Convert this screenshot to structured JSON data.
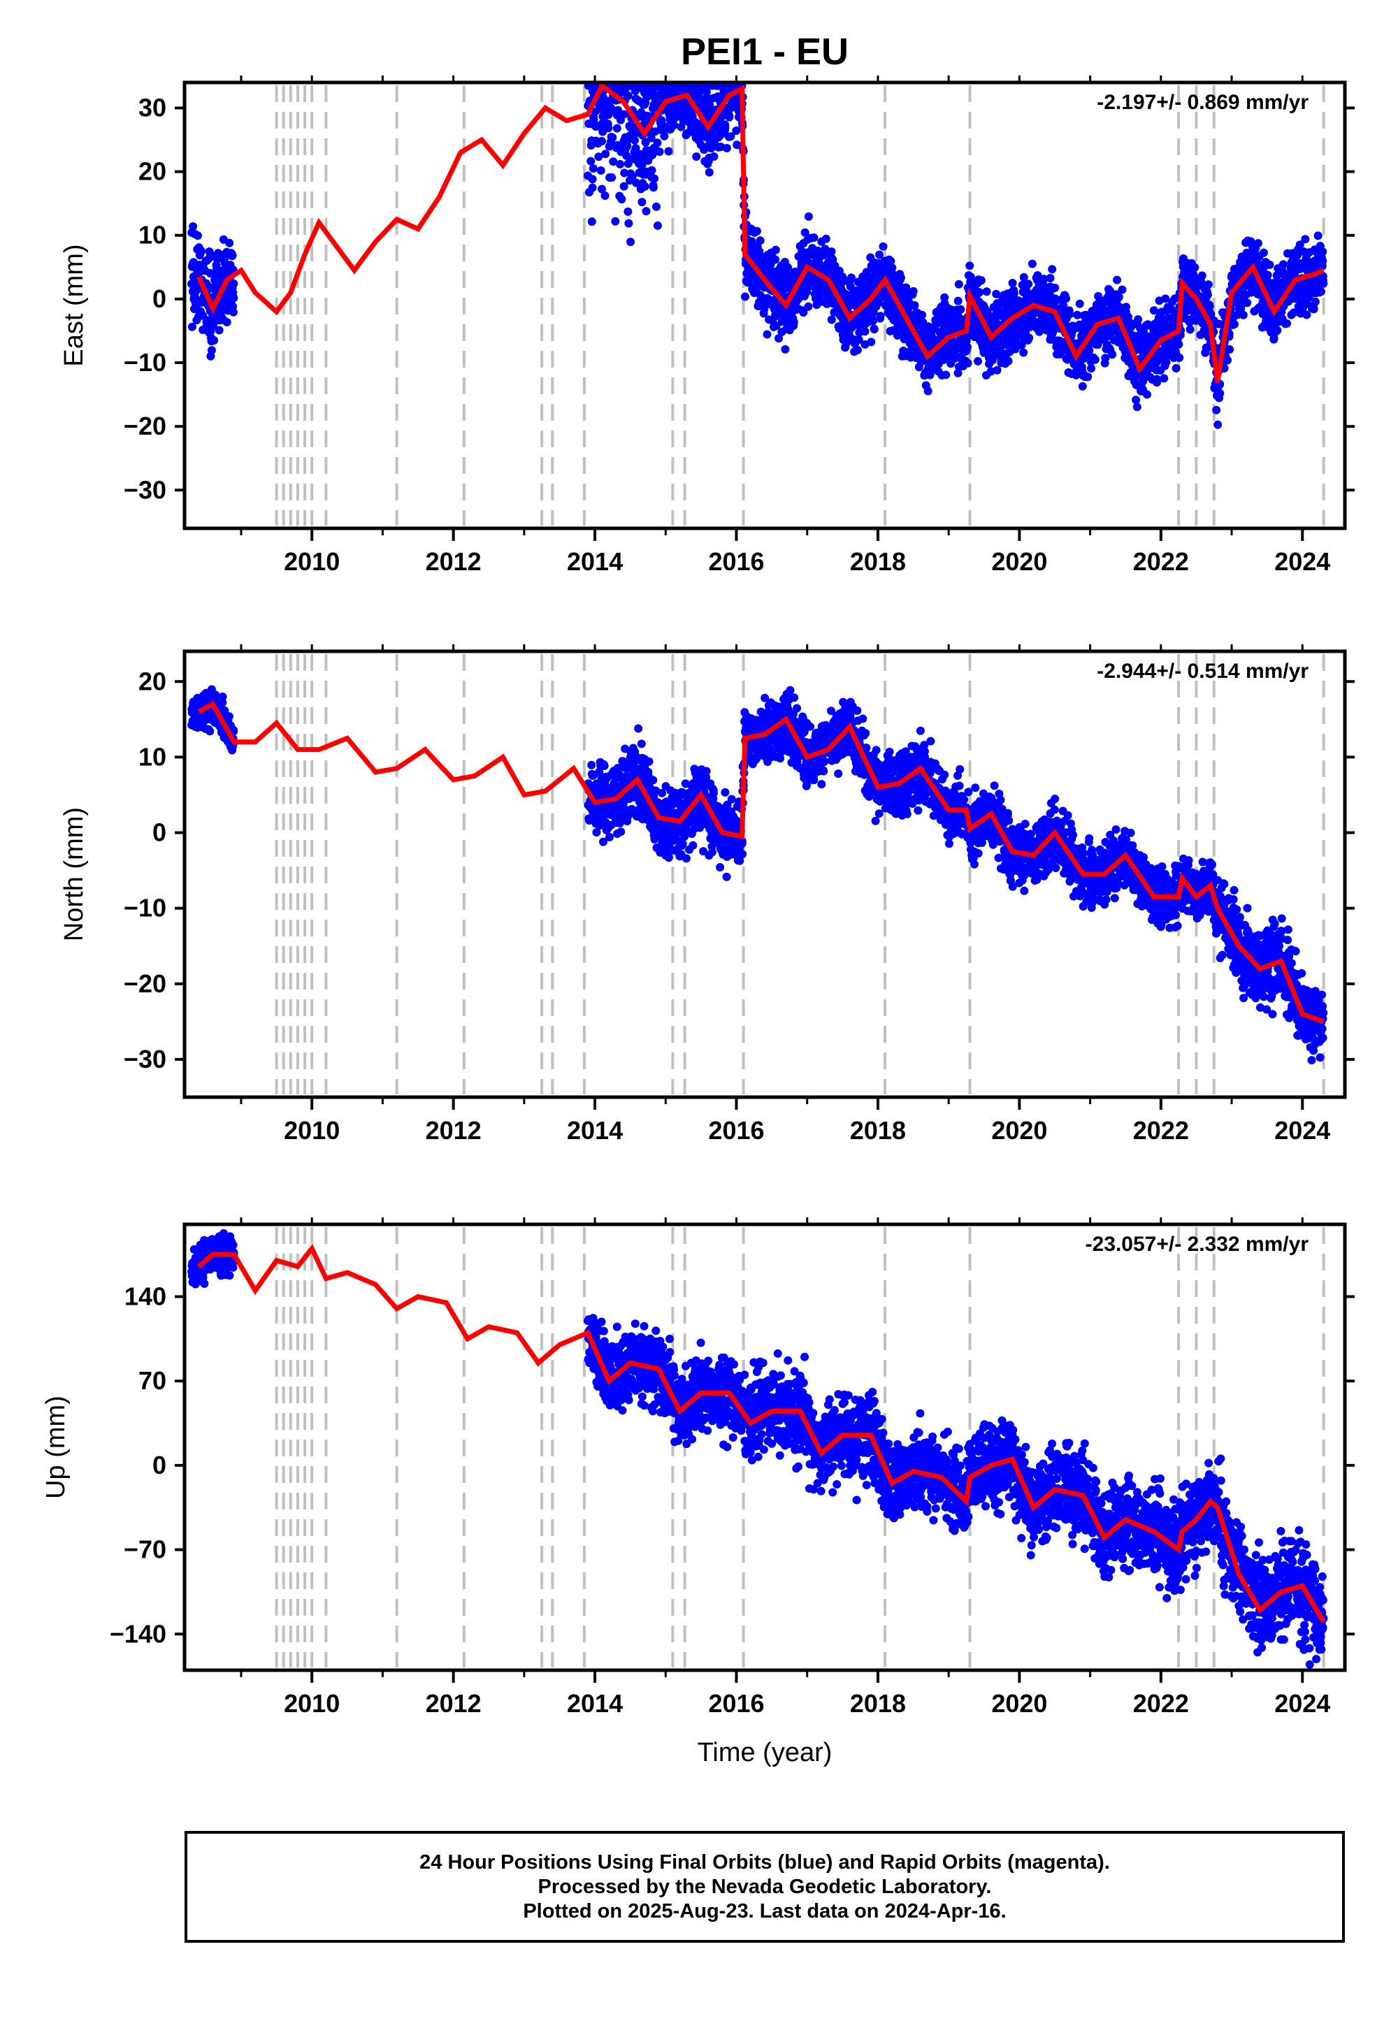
{
  "title": "PEI1 - EU",
  "xlabel": "Time (year)",
  "caption": {
    "line1": "24 Hour Positions Using Final Orbits (blue) and Rapid Orbits (magenta).",
    "line2": "Processed by the Nevada Geodetic Laboratory.",
    "line3": "Plotted on 2025-Aug-23. Last data on 2024-Apr-16."
  },
  "colors": {
    "data": "#0000ff",
    "model": "#ff0000",
    "steps": "#c0c0c0",
    "axis": "#000000"
  },
  "x_ticks": [
    2010,
    2012,
    2014,
    2016,
    2018,
    2020,
    2022,
    2024
  ],
  "step_epochs": [
    2009.5,
    2009.6,
    2009.7,
    2009.8,
    2009.9,
    2010.0,
    2010.2,
    2011.2,
    2012.15,
    2013.25,
    2013.4,
    2013.85,
    2015.1,
    2015.27,
    2016.1,
    2018.1,
    2019.3,
    2022.25,
    2022.5,
    2022.75,
    2024.3
  ],
  "chart_data": [
    {
      "type": "scatter",
      "ylabel": "East (mm)",
      "rate": "-2.197+/- 0.869 mm/yr",
      "xlim": [
        2008.2,
        2024.6
      ],
      "ylim": [
        -36,
        34
      ],
      "y_ticks": [
        -30,
        -20,
        -10,
        0,
        10,
        20,
        30
      ],
      "series": [
        {
          "x": [
            2008.4,
            2008.6,
            2008.8,
            2009.0,
            2009.2,
            2009.5,
            2009.7,
            2009.9,
            2010.1,
            2010.3,
            2010.6,
            2010.9,
            2011.2,
            2011.5,
            2011.8,
            2012.1,
            2012.4,
            2012.7,
            2013.0,
            2013.3,
            2013.6,
            2013.9,
            2014.1,
            2014.4,
            2014.7,
            2015.0,
            2015.3,
            2015.6,
            2015.9,
            2016.08,
            2016.12,
            2016.4,
            2016.7,
            2017.0,
            2017.3,
            2017.6,
            2017.9,
            2018.1,
            2018.4,
            2018.7,
            2019.0,
            2019.25,
            2019.3,
            2019.6,
            2019.9,
            2020.2,
            2020.5,
            2020.8,
            2021.1,
            2021.4,
            2021.7,
            2022.0,
            2022.25,
            2022.3,
            2022.5,
            2022.7,
            2022.8,
            2023.0,
            2023.3,
            2023.6,
            2023.9,
            2024.2,
            2024.3
          ],
          "y": [
            3.5,
            -1.5,
            3.0,
            4.5,
            1.0,
            -2.0,
            1.0,
            7.0,
            12.0,
            9.0,
            4.5,
            9.0,
            12.5,
            11.0,
            16.0,
            23.0,
            25.0,
            21.0,
            26.0,
            30.0,
            28.0,
            29.0,
            33.5,
            31.0,
            26.0,
            31.0,
            32.0,
            27.0,
            32.0,
            33.0,
            7.0,
            3.0,
            -1.0,
            5.0,
            3.0,
            -3.0,
            0.0,
            3.0,
            -3.0,
            -9.0,
            -6.0,
            -5.0,
            0.5,
            -6.0,
            -3.0,
            -1.0,
            -2.0,
            -9.0,
            -4.0,
            -3.0,
            -11.0,
            -6.5,
            -5.0,
            2.5,
            0.0,
            -4.0,
            -13.0,
            1.0,
            5.0,
            -2.0,
            3.0,
            4.0,
            4.5
          ]
        }
      ],
      "data_segments": [
        [
          2008.3,
          2008.9,
          1,
          10
        ],
        [
          2013.9,
          2014.9,
          10,
          20
        ],
        [
          2014.9,
          2016.1,
          25,
          8
        ],
        [
          2016.1,
          2024.3,
          0,
          7
        ]
      ]
    },
    {
      "type": "scatter",
      "ylabel": "North (mm)",
      "rate": "-2.944+/- 0.514 mm/yr",
      "xlim": [
        2008.2,
        2024.6
      ],
      "ylim": [
        -35,
        24
      ],
      "y_ticks": [
        -30,
        -20,
        -10,
        0,
        10,
        20
      ],
      "series": [
        {
          "x": [
            2008.4,
            2008.6,
            2008.9,
            2009.2,
            2009.5,
            2009.8,
            2010.1,
            2010.5,
            2010.9,
            2011.2,
            2011.6,
            2012.0,
            2012.3,
            2012.7,
            2013.0,
            2013.3,
            2013.7,
            2014.0,
            2014.3,
            2014.6,
            2014.9,
            2015.2,
            2015.5,
            2015.8,
            2016.08,
            2016.12,
            2016.4,
            2016.7,
            2017.0,
            2017.3,
            2017.6,
            2018.0,
            2018.3,
            2018.6,
            2019.0,
            2019.25,
            2019.3,
            2019.6,
            2019.9,
            2020.2,
            2020.5,
            2020.9,
            2021.2,
            2021.5,
            2021.9,
            2022.25,
            2022.3,
            2022.5,
            2022.7,
            2022.8,
            2023.1,
            2023.4,
            2023.7,
            2024.0,
            2024.3
          ],
          "y": [
            16.0,
            17.0,
            12.0,
            12.0,
            14.5,
            11.0,
            11.0,
            12.5,
            8.0,
            8.5,
            11.0,
            7.0,
            7.5,
            10.0,
            5.0,
            5.5,
            8.5,
            4.0,
            4.5,
            7.0,
            2.0,
            1.5,
            5.0,
            0.0,
            -0.5,
            12.5,
            13.0,
            15.0,
            10.0,
            11.0,
            14.0,
            6.0,
            6.5,
            8.5,
            3.0,
            3.0,
            0.5,
            2.5,
            -2.5,
            -3.0,
            0.0,
            -5.5,
            -5.5,
            -3.0,
            -8.5,
            -8.5,
            -6.0,
            -8.5,
            -7.0,
            -10.0,
            -15.0,
            -18.0,
            -17.0,
            -24.0,
            -25.0
          ]
        }
      ],
      "data_segments": [
        [
          2008.3,
          2008.9,
          15,
          3
        ],
        [
          2013.9,
          2016.1,
          1,
          6
        ],
        [
          2016.1,
          2022.8,
          9,
          5
        ],
        [
          2022.8,
          2024.3,
          -18,
          6
        ]
      ]
    },
    {
      "type": "scatter",
      "ylabel": "Up (mm)",
      "rate": "-23.057+/- 2.332 mm/yr",
      "xlim": [
        2008.2,
        2024.6
      ],
      "ylim": [
        -170,
        200
      ],
      "y_ticks": [
        -140,
        -70,
        0,
        70,
        140
      ],
      "series": [
        {
          "x": [
            2008.4,
            2008.6,
            2008.9,
            2009.2,
            2009.5,
            2009.8,
            2010.0,
            2010.2,
            2010.5,
            2010.9,
            2011.2,
            2011.5,
            2011.9,
            2012.2,
            2012.5,
            2012.9,
            2013.2,
            2013.5,
            2013.9,
            2014.2,
            2014.5,
            2014.9,
            2015.2,
            2015.5,
            2015.9,
            2016.2,
            2016.5,
            2016.9,
            2017.2,
            2017.5,
            2017.9,
            2018.2,
            2018.5,
            2018.9,
            2019.25,
            2019.3,
            2019.6,
            2019.9,
            2020.2,
            2020.5,
            2020.9,
            2021.2,
            2021.5,
            2021.9,
            2022.25,
            2022.3,
            2022.5,
            2022.7,
            2022.8,
            2023.1,
            2023.4,
            2023.7,
            2024.0,
            2024.3
          ],
          "y": [
            165,
            175,
            175,
            145,
            170,
            165,
            180,
            155,
            160,
            150,
            130,
            140,
            135,
            105,
            115,
            110,
            85,
            100,
            110,
            70,
            85,
            80,
            45,
            60,
            60,
            35,
            45,
            45,
            10,
            25,
            25,
            -15,
            -5,
            -10,
            -30,
            -10,
            0,
            5,
            -35,
            -20,
            -25,
            -60,
            -45,
            -55,
            -70,
            -55,
            -45,
            -30,
            -35,
            -90,
            -120,
            -105,
            -100,
            -130
          ]
        }
      ],
      "data_segments": [
        [
          2008.3,
          2008.9,
          172,
          20
        ],
        [
          2013.9,
          2016.1,
          80,
          40
        ],
        [
          2016.1,
          2022.8,
          15,
          45
        ],
        [
          2022.8,
          2024.3,
          -80,
          50
        ]
      ]
    }
  ]
}
